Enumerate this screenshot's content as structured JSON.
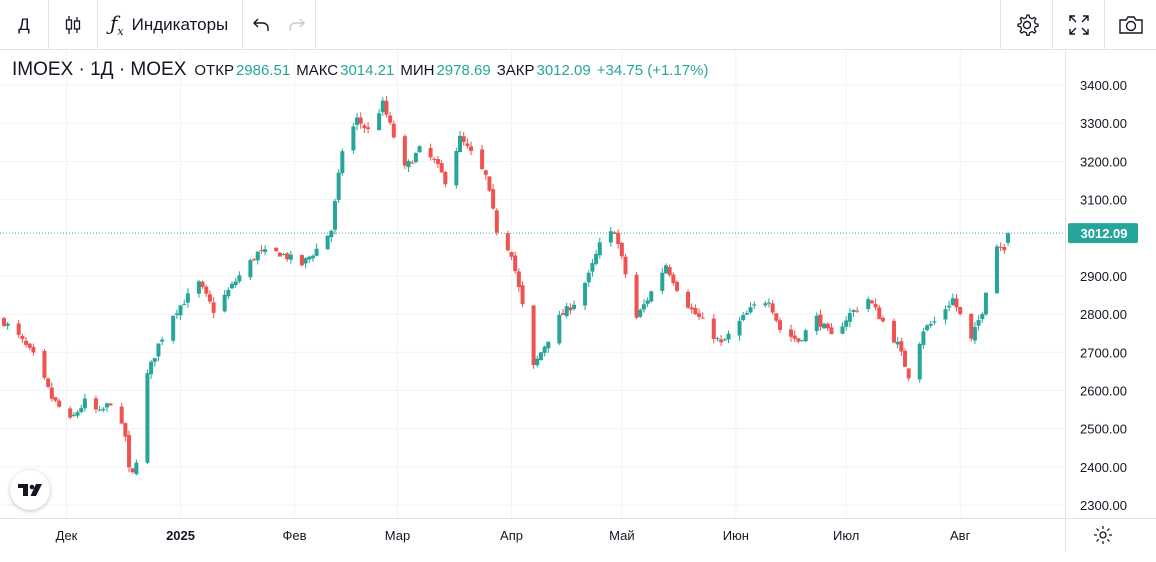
{
  "toolbar": {
    "interval": "Д",
    "indicators_label": "Индикаторы",
    "icons": [
      "candles-icon",
      "fx-icon",
      "undo-icon",
      "redo-icon",
      "settings-icon",
      "fullscreen-icon",
      "camera-icon"
    ]
  },
  "legend": {
    "symbol": "IMOEX · 1Д · MOEX",
    "open_label": "ОТКР",
    "open": "2986.51",
    "high_label": "МАКС",
    "high": "3014.21",
    "low_label": "МИН",
    "low": "2978.69",
    "close_label": "ЗАКР",
    "close": "3012.09",
    "change": "+34.75 (+1.17%)"
  },
  "colors": {
    "up": "#26a69a",
    "down": "#ef5350",
    "grid": "#f0f3fa",
    "text": "#131722"
  },
  "chart_data": {
    "type": "candlestick",
    "title": "IMOEX · 1Д · MOEX",
    "ylim": [
      2270,
      3450
    ],
    "y_ticks": [
      "3400.00",
      "3300.00",
      "3200.00",
      "3100.00",
      "3000.00",
      "2900.00",
      "2800.00",
      "2700.00",
      "2600.00",
      "2500.00",
      "2400.00",
      "2300.00"
    ],
    "x_ticks": [
      "Дек",
      "2025",
      "Фев",
      "Мар",
      "Апр",
      "Май",
      "Июн",
      "Июл",
      "Авг"
    ],
    "last_price": "3012.09",
    "x_start": "2024-11-14",
    "x_end": "2025-08-14",
    "grid": true,
    "anchors": [
      [
        "2024-11-14",
        2780
      ],
      [
        "2024-11-18",
        2740
      ],
      [
        "2024-11-22",
        2690
      ],
      [
        "2024-11-27",
        2580
      ],
      [
        "2024-12-02",
        2520
      ],
      [
        "2024-12-06",
        2570
      ],
      [
        "2024-12-10",
        2540
      ],
      [
        "2024-12-13",
        2570
      ],
      [
        "2024-12-17",
        2480
      ],
      [
        "2024-12-18",
        2390
      ],
      [
        "2024-12-19",
        2380
      ],
      [
        "2024-12-20",
        2420
      ],
      [
        "2024-12-23",
        2640
      ],
      [
        "2024-12-26",
        2720
      ],
      [
        "2024-12-30",
        2800
      ],
      [
        "2025-01-06",
        2880
      ],
      [
        "2025-01-10",
        2810
      ],
      [
        "2025-01-14",
        2860
      ],
      [
        "2025-01-17",
        2900
      ],
      [
        "2025-01-22",
        2960
      ],
      [
        "2025-01-28",
        2960
      ],
      [
        "2025-02-03",
        2930
      ],
      [
        "2025-02-07",
        2970
      ],
      [
        "2025-02-11",
        3020
      ],
      [
        "2025-02-14",
        3230
      ],
      [
        "2025-02-18",
        3310
      ],
      [
        "2025-02-21",
        3280
      ],
      [
        "2025-02-25",
        3350
      ],
      [
        "2025-03-03",
        3180
      ],
      [
        "2025-03-07",
        3230
      ],
      [
        "2025-03-11",
        3200
      ],
      [
        "2025-03-14",
        3150
      ],
      [
        "2025-03-18",
        3260
      ],
      [
        "2025-03-21",
        3220
      ],
      [
        "2025-03-25",
        3160
      ],
      [
        "2025-03-28",
        3020
      ],
      [
        "2025-04-01",
        2960
      ],
      [
        "2025-04-04",
        2820
      ],
      [
        "2025-04-07",
        2660
      ],
      [
        "2025-04-09",
        2700
      ],
      [
        "2025-04-14",
        2790
      ],
      [
        "2025-04-18",
        2830
      ],
      [
        "2025-04-22",
        2900
      ],
      [
        "2025-04-25",
        2980
      ],
      [
        "2025-04-29",
        3020
      ],
      [
        "2025-05-05",
        2790
      ],
      [
        "2025-05-08",
        2840
      ],
      [
        "2025-05-13",
        2930
      ],
      [
        "2025-05-16",
        2870
      ],
      [
        "2025-05-20",
        2810
      ],
      [
        "2025-05-23",
        2780
      ],
      [
        "2025-05-28",
        2720
      ],
      [
        "2025-06-03",
        2790
      ],
      [
        "2025-06-06",
        2820
      ],
      [
        "2025-06-10",
        2840
      ],
      [
        "2025-06-13",
        2760
      ],
      [
        "2025-06-18",
        2730
      ],
      [
        "2025-06-23",
        2790
      ],
      [
        "2025-06-27",
        2740
      ],
      [
        "2025-07-02",
        2800
      ],
      [
        "2025-07-07",
        2840
      ],
      [
        "2025-07-11",
        2780
      ],
      [
        "2025-07-15",
        2720
      ],
      [
        "2025-07-18",
        2640
      ],
      [
        "2025-07-22",
        2760
      ],
      [
        "2025-07-25",
        2780
      ],
      [
        "2025-07-30",
        2840
      ],
      [
        "2025-08-04",
        2730
      ],
      [
        "2025-08-07",
        2810
      ],
      [
        "2025-08-09",
        2920
      ],
      [
        "2025-08-11",
        2980
      ],
      [
        "2025-08-13",
        2977
      ],
      [
        "2025-08-14",
        3012.09
      ]
    ]
  }
}
